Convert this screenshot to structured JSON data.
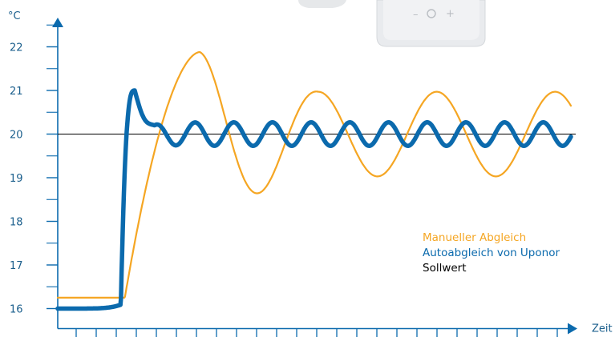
{
  "chart_data": {
    "type": "line",
    "title": "",
    "y_unit": "°C",
    "x_label": "Zeit",
    "ylim": [
      16,
      22.6
    ],
    "xlim": [
      0,
      13
    ],
    "y_ticks": [
      16,
      17,
      18,
      19,
      20,
      21,
      22
    ],
    "y_tick_labels": [
      "16",
      "17",
      "18",
      "19",
      "20",
      "21",
      "22"
    ],
    "x_tick_count": 26,
    "grid": false,
    "legend_placement": "lower-right",
    "series": [
      {
        "name": "Manueller Abgleich",
        "color": "#f5a623",
        "model": "manual",
        "rise_start_x": 1.7,
        "rise_end_x": 2.7,
        "start_y": 16.25,
        "center_y": 20.0,
        "first_peak_y": 21.88,
        "first_peak_x": 3.6,
        "first_trough_y": 18.42,
        "first_trough_x": 5.6,
        "later_peak_y": 20.97,
        "later_trough_y": 19.1,
        "period": 3.0,
        "end_y": 20.75
      },
      {
        "name": "Autoabgleich von Uponor",
        "color": "#0b6aad",
        "model": "auto",
        "start_y": 16.0,
        "flat_until_x": 1.6,
        "rise_end_x": 1.95,
        "peak_y": 21.0,
        "center_y": 20.0,
        "amplitude": 0.27,
        "period": 0.98,
        "end_y": 19.8
      },
      {
        "name": "Sollwert",
        "color": "#000000",
        "model": "setpoint",
        "value": 20.0
      }
    ]
  },
  "axis_color": "#0b6aad"
}
